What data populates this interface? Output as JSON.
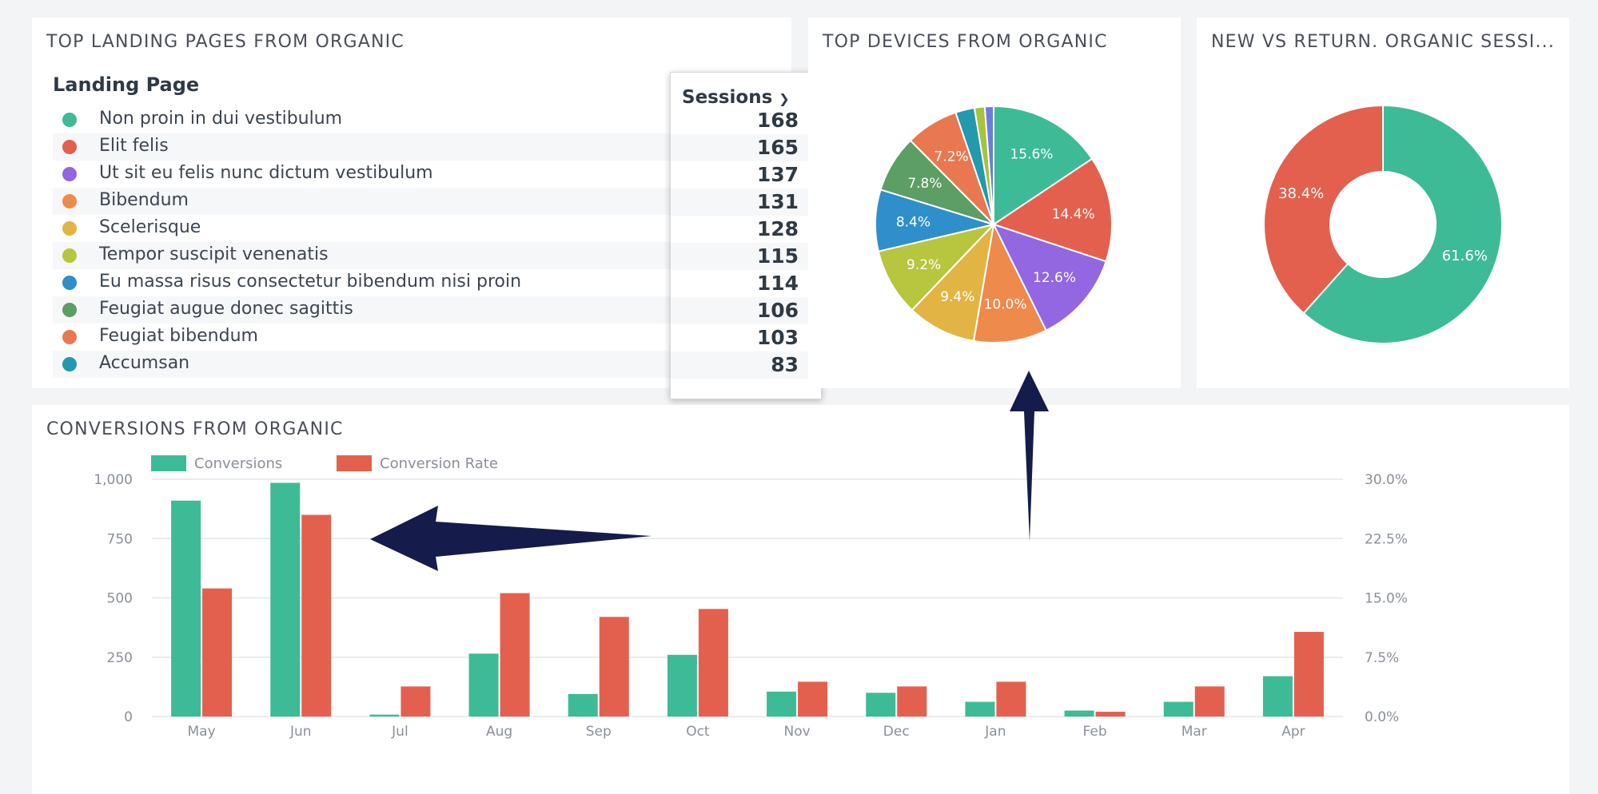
{
  "landing_pages": {
    "title": "TOP LANDING PAGES FROM ORGANIC",
    "col_page": "Landing Page",
    "col_sessions": "Sessions",
    "sort_icon": "chevron-down-icon",
    "rows": [
      {
        "name": "Non proin in dui vestibulum",
        "sessions": "168",
        "color": "#3dbb97"
      },
      {
        "name": "Elit felis",
        "sessions": "165",
        "color": "#e3604f"
      },
      {
        "name": "Ut sit eu felis nunc dictum vestibulum",
        "sessions": "137",
        "color": "#9366e2"
      },
      {
        "name": "Bibendum",
        "sessions": "131",
        "color": "#ee8a4c"
      },
      {
        "name": "Scelerisque",
        "sessions": "128",
        "color": "#e2b443"
      },
      {
        "name": "Tempor suscipit venenatis",
        "sessions": "115",
        "color": "#b8c53f"
      },
      {
        "name": "Eu massa risus consectetur bibendum nisi proin",
        "sessions": "114",
        "color": "#2f8fcb"
      },
      {
        "name": "Feugiat augue donec sagittis",
        "sessions": "106",
        "color": "#5c9e63"
      },
      {
        "name": "Feugiat bibendum",
        "sessions": "103",
        "color": "#e97851"
      },
      {
        "name": "Accumsan",
        "sessions": "83",
        "color": "#2399ad"
      }
    ]
  },
  "devices": {
    "title": "TOP DEVICES FROM ORGANIC"
  },
  "new_vs_return": {
    "title": "NEW VS RETURN. ORGANIC SESSI..."
  },
  "conversions": {
    "title": "CONVERSIONS FROM ORGANIC"
  },
  "chart_data": [
    {
      "type": "pie",
      "labels": [
        "15.6%",
        "14.4%",
        "12.6%",
        "10.0%",
        "9.4%",
        "9.2%",
        "8.4%",
        "7.8%",
        "7.2%",
        "",
        "",
        ""
      ],
      "values": [
        15.6,
        14.4,
        12.6,
        10.0,
        9.4,
        9.2,
        8.4,
        7.8,
        7.2,
        2.6,
        1.4,
        1.2
      ],
      "colors": [
        "#3dbb97",
        "#e3604f",
        "#9366e2",
        "#ee8a4c",
        "#e2b443",
        "#b8c53f",
        "#2f8fcb",
        "#5c9e63",
        "#e97851",
        "#2399ad",
        "#a8c23b",
        "#6b7de0"
      ]
    },
    {
      "type": "pie",
      "donut": true,
      "labels": [
        "61.6%",
        "38.4%"
      ],
      "values": [
        61.6,
        38.4
      ],
      "colors": [
        "#3dbb97",
        "#e3604f"
      ]
    },
    {
      "type": "bar",
      "categories": [
        "May",
        "Jun",
        "Jul",
        "Aug",
        "Sep",
        "Oct",
        "Nov",
        "Dec",
        "Jan",
        "Feb",
        "Mar",
        "Apr"
      ],
      "series": [
        {
          "name": "Conversions",
          "axis": "left",
          "color": "#3dbb97",
          "values": [
            910,
            985,
            8,
            265,
            95,
            260,
            105,
            100,
            62,
            25,
            62,
            170
          ]
        },
        {
          "name": "Conversion Rate",
          "axis": "right",
          "color": "#e3604f",
          "values": [
            16.2,
            25.5,
            3.8,
            15.6,
            12.6,
            13.6,
            4.4,
            3.8,
            4.4,
            0.6,
            3.8,
            10.7
          ]
        }
      ],
      "ylim_left": [
        0,
        1000
      ],
      "ylim_right": [
        0,
        30
      ],
      "yticks_left": [
        "0",
        "250",
        "500",
        "750",
        "1,000"
      ],
      "yticks_right": [
        "0.0%",
        "7.5%",
        "15.0%",
        "22.5%",
        "30.0%"
      ],
      "legend": "top-left",
      "grid": true
    }
  ]
}
